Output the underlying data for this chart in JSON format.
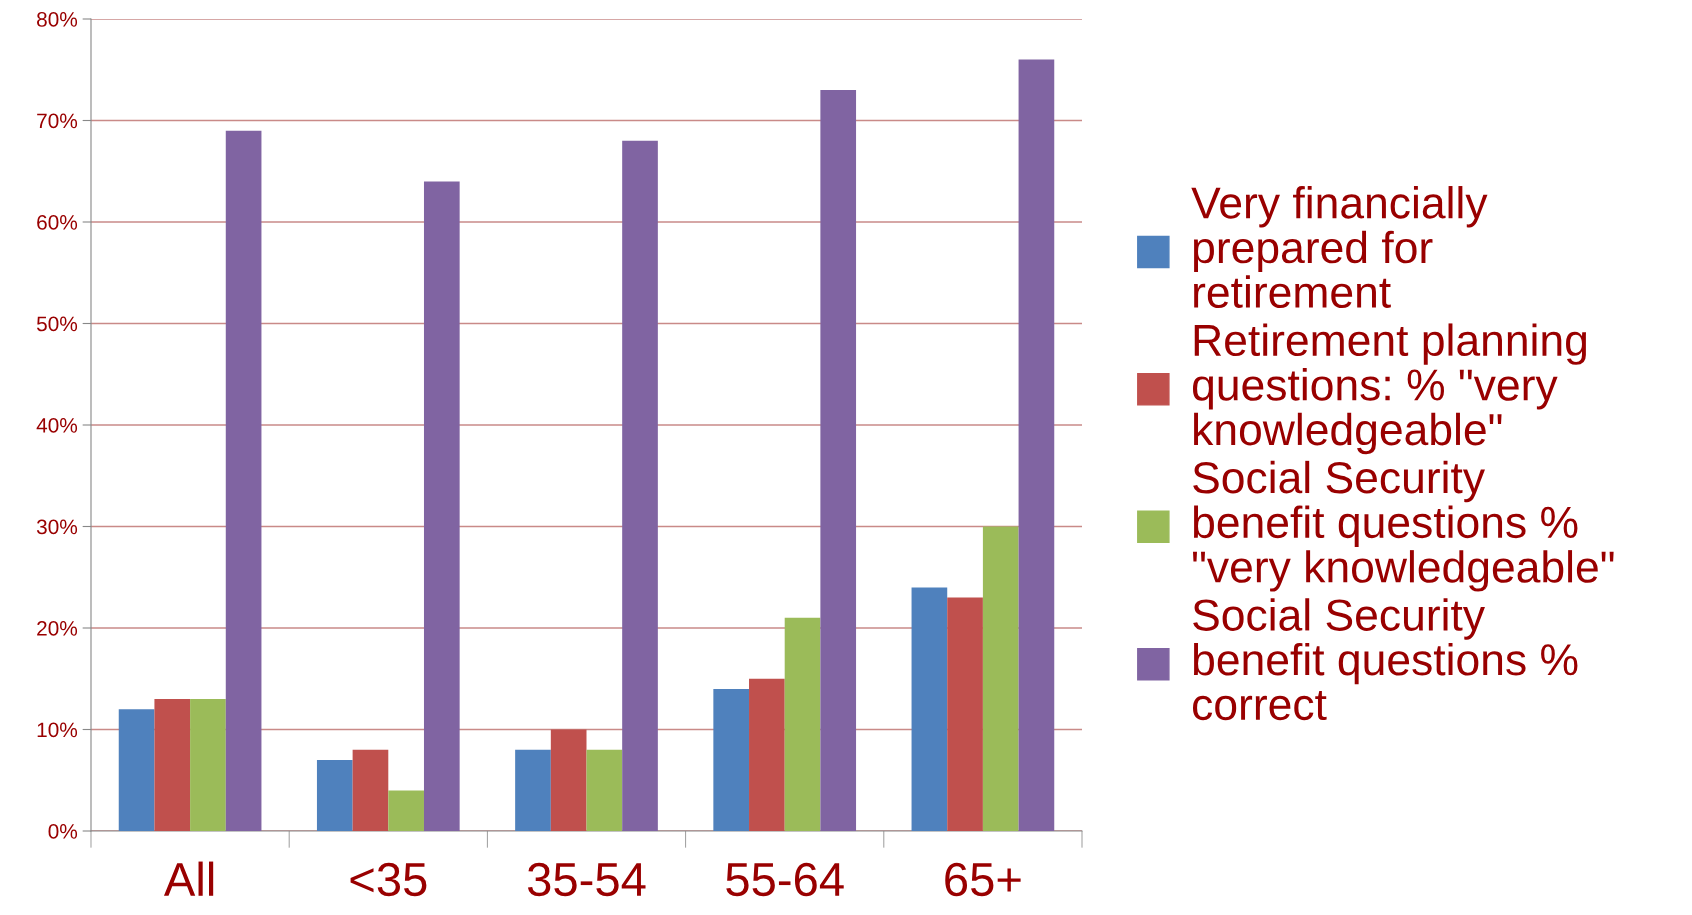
{
  "chart_data": {
    "type": "bar",
    "categories": [
      "All",
      "<35",
      "35-54",
      "55-64",
      "65+"
    ],
    "series": [
      {
        "name": "Very financially\nprepared for\nretirement",
        "color": "#4f81bd",
        "values": [
          12,
          7,
          8,
          14,
          24
        ]
      },
      {
        "name": "Retirement planning\nquestions: % \"very\nknowledgeable\"",
        "color": "#c0504d",
        "values": [
          13,
          8,
          10,
          15,
          23
        ]
      },
      {
        "name": "Social Security\nbenefit questions %\n\"very knowledgeable\"",
        "color": "#9bbb59",
        "values": [
          13,
          4,
          8,
          21,
          30
        ]
      },
      {
        "name": "Social Security\nbenefit questions %\ncorrect",
        "color": "#8064a2",
        "values": [
          69,
          64,
          68,
          73,
          76
        ]
      }
    ],
    "ylim": [
      0,
      80
    ],
    "yticks": [
      {
        "value": 0,
        "label": "0%"
      },
      {
        "value": 10,
        "label": "10%"
      },
      {
        "value": 20,
        "label": "20%"
      },
      {
        "value": 30,
        "label": "30%"
      },
      {
        "value": 40,
        "label": "40%"
      },
      {
        "value": 50,
        "label": "50%"
      },
      {
        "value": 60,
        "label": "60%"
      },
      {
        "value": 70,
        "label": "70%"
      },
      {
        "value": 80,
        "label": "80%"
      }
    ],
    "grid": "y",
    "legend": "right"
  }
}
